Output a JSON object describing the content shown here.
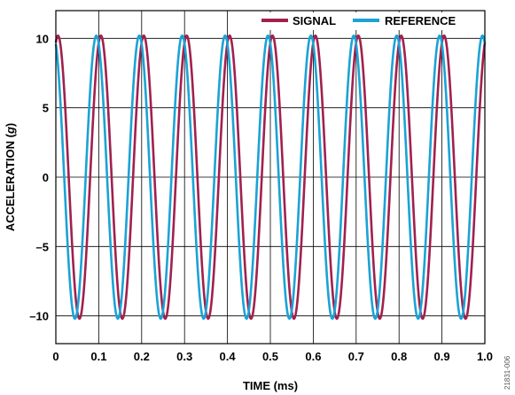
{
  "chart_data": {
    "type": "line",
    "xlabel": "TIME (ms)",
    "ylabel_prefix": "ACCELERATION (",
    "ylabel_unit": "g",
    "ylabel_suffix": ")",
    "xlim": [
      0,
      1.0
    ],
    "ylim": [
      -12,
      12
    ],
    "xticks": [
      0,
      0.1,
      0.2,
      0.3,
      0.4,
      0.5,
      0.6,
      0.7,
      0.8,
      0.9,
      1.0
    ],
    "xtick_labels": [
      "0",
      "0.1",
      "0.2",
      "0.3",
      "0.4",
      "0.5",
      "0.6",
      "0.7",
      "0.8",
      "0.9",
      "1.0"
    ],
    "yticks": [
      10,
      5,
      0,
      -5,
      -10
    ],
    "ytick_labels": [
      "10",
      "5",
      "0",
      "–5",
      "–10"
    ],
    "grid": true,
    "legend_position": "top-right",
    "series": [
      {
        "name": "SIGNAL",
        "color": "#A0214E",
        "waveform": "sine",
        "amplitude": 10.2,
        "frequency_khz": 10,
        "first_peak_ms": 0.005
      },
      {
        "name": "REFERENCE",
        "color": "#1BA3D6",
        "waveform": "sine",
        "amplitude": 10.2,
        "frequency_khz": 10,
        "first_peak_ms": 0.0945
      }
    ]
  },
  "figure_id": "21831-006"
}
